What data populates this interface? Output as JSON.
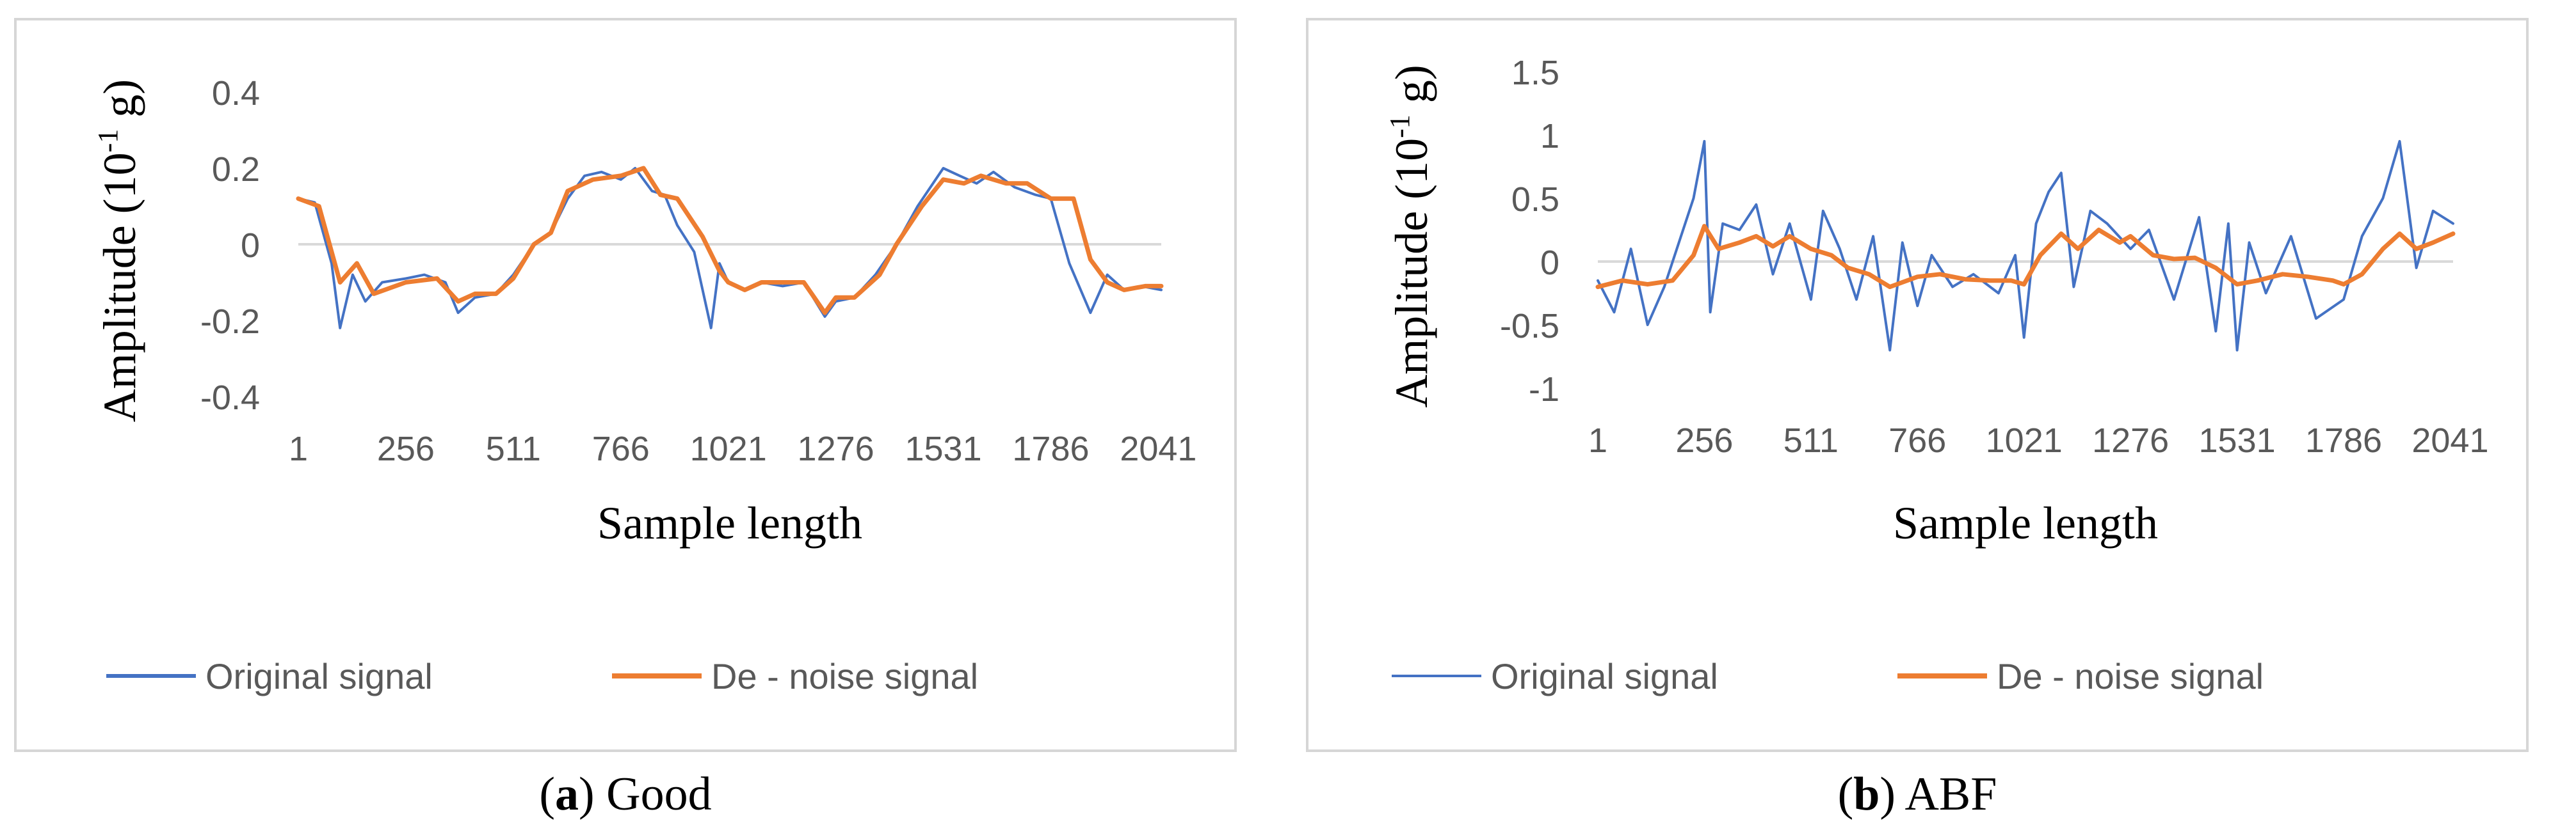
{
  "chart_data": [
    {
      "type": "line",
      "panel": "a",
      "title": "",
      "caption_letter": "a",
      "caption_text": "Good",
      "xlabel": "Sample length",
      "ylabel_main": "Amplitude (10",
      "ylabel_sup": "-1",
      "ylabel_tail": " g)",
      "x_ticks": [
        "1",
        "256",
        "511",
        "766",
        "1021",
        "1276",
        "1531",
        "1786",
        "2041"
      ],
      "x_range": [
        1,
        2048
      ],
      "y_ticks": [
        "0.4",
        "0.2",
        "0",
        "-0.2",
        "-0.4"
      ],
      "ylim": [
        -0.4,
        0.4
      ],
      "grid": "horizontal zero line only",
      "legend_position": "bottom",
      "colors": {
        "original": "#4472c4",
        "denoise": "#ed7d31"
      },
      "series": [
        {
          "name": "Original signal",
          "color": "#4472c4",
          "x": [
            1,
            40,
            80,
            100,
            130,
            160,
            200,
            256,
            300,
            350,
            380,
            420,
            470,
            511,
            560,
            600,
            640,
            680,
            720,
            766,
            800,
            840,
            870,
            900,
            940,
            980,
            1000,
            1021,
            1060,
            1100,
            1150,
            1200,
            1250,
            1276,
            1320,
            1370,
            1420,
            1470,
            1531,
            1570,
            1610,
            1650,
            1700,
            1750,
            1786,
            1830,
            1880,
            1920,
            1960,
            2000,
            2048
          ],
          "y": [
            0.12,
            0.11,
            -0.05,
            -0.22,
            -0.08,
            -0.15,
            -0.1,
            -0.09,
            -0.08,
            -0.1,
            -0.18,
            -0.14,
            -0.13,
            -0.08,
            0.0,
            0.03,
            0.12,
            0.18,
            0.19,
            0.17,
            0.2,
            0.14,
            0.13,
            0.05,
            -0.02,
            -0.22,
            -0.05,
            -0.1,
            -0.12,
            -0.1,
            -0.11,
            -0.1,
            -0.19,
            -0.15,
            -0.14,
            -0.08,
            0.0,
            0.1,
            0.2,
            0.18,
            0.16,
            0.19,
            0.15,
            0.13,
            0.12,
            -0.05,
            -0.18,
            -0.08,
            -0.12,
            -0.11,
            -0.12
          ]
        },
        {
          "name": "De - noise signal",
          "color": "#ed7d31",
          "x": [
            1,
            50,
            100,
            140,
            180,
            256,
            330,
            380,
            420,
            470,
            511,
            560,
            600,
            640,
            700,
            766,
            820,
            860,
            900,
            960,
            1000,
            1021,
            1060,
            1100,
            1150,
            1200,
            1250,
            1276,
            1320,
            1380,
            1420,
            1480,
            1531,
            1580,
            1620,
            1680,
            1730,
            1786,
            1840,
            1880,
            1920,
            1960,
            2010,
            2048
          ],
          "y": [
            0.12,
            0.1,
            -0.1,
            -0.05,
            -0.13,
            -0.1,
            -0.09,
            -0.15,
            -0.13,
            -0.13,
            -0.09,
            0.0,
            0.03,
            0.14,
            0.17,
            0.18,
            0.2,
            0.13,
            0.12,
            0.02,
            -0.07,
            -0.1,
            -0.12,
            -0.1,
            -0.1,
            -0.1,
            -0.18,
            -0.14,
            -0.14,
            -0.08,
            0.0,
            0.1,
            0.17,
            0.16,
            0.18,
            0.16,
            0.16,
            0.12,
            0.12,
            -0.04,
            -0.1,
            -0.12,
            -0.11,
            -0.11
          ]
        }
      ]
    },
    {
      "type": "line",
      "panel": "b",
      "title": "",
      "caption_letter": "b",
      "caption_text": "ABF",
      "xlabel": "Sample length",
      "ylabel_main": "Amplitude (10",
      "ylabel_sup": "-1",
      "ylabel_tail": " g)",
      "x_ticks": [
        "1",
        "256",
        "511",
        "766",
        "1021",
        "1276",
        "1531",
        "1786",
        "2041"
      ],
      "x_range": [
        1,
        2048
      ],
      "y_ticks": [
        "1.5",
        "1",
        "0.5",
        "0",
        "-0.5",
        "-1"
      ],
      "ylim": [
        -1.0,
        1.5
      ],
      "grid": "horizontal zero line only",
      "legend_position": "bottom",
      "colors": {
        "original": "#4472c4",
        "denoise": "#ed7d31"
      },
      "series": [
        {
          "name": "Original signal",
          "color": "#4472c4",
          "x": [
            1,
            40,
            80,
            120,
            160,
            200,
            230,
            256,
            270,
            300,
            340,
            380,
            420,
            460,
            511,
            540,
            580,
            620,
            660,
            700,
            730,
            766,
            800,
            850,
            900,
            960,
            1000,
            1021,
            1050,
            1080,
            1110,
            1140,
            1180,
            1220,
            1276,
            1320,
            1380,
            1440,
            1480,
            1510,
            1531,
            1560,
            1600,
            1660,
            1720,
            1786,
            1830,
            1880,
            1920,
            1960,
            2000,
            2048
          ],
          "y": [
            -0.15,
            -0.4,
            0.1,
            -0.5,
            -0.2,
            0.2,
            0.5,
            0.95,
            -0.4,
            0.3,
            0.25,
            0.45,
            -0.1,
            0.3,
            -0.3,
            0.4,
            0.1,
            -0.3,
            0.2,
            -0.7,
            0.15,
            -0.35,
            0.05,
            -0.2,
            -0.1,
            -0.25,
            0.05,
            -0.6,
            0.3,
            0.55,
            0.7,
            -0.2,
            0.4,
            0.3,
            0.1,
            0.25,
            -0.3,
            0.35,
            -0.55,
            0.3,
            -0.7,
            0.15,
            -0.25,
            0.2,
            -0.45,
            -0.3,
            0.2,
            0.5,
            0.95,
            -0.05,
            0.4,
            0.3
          ]
        },
        {
          "name": "De - noise signal",
          "color": "#ed7d31",
          "x": [
            1,
            60,
            120,
            180,
            230,
            256,
            290,
            340,
            380,
            420,
            460,
            511,
            560,
            600,
            650,
            700,
            766,
            820,
            880,
            940,
            990,
            1021,
            1060,
            1110,
            1150,
            1200,
            1250,
            1276,
            1330,
            1380,
            1430,
            1480,
            1531,
            1580,
            1640,
            1700,
            1760,
            1786,
            1830,
            1880,
            1920,
            1960,
            2000,
            2048
          ],
          "y": [
            -0.2,
            -0.15,
            -0.18,
            -0.15,
            0.05,
            0.28,
            0.1,
            0.15,
            0.2,
            0.12,
            0.2,
            0.1,
            0.05,
            -0.05,
            -0.1,
            -0.2,
            -0.12,
            -0.1,
            -0.14,
            -0.15,
            -0.15,
            -0.18,
            0.05,
            0.22,
            0.1,
            0.25,
            0.15,
            0.2,
            0.05,
            0.02,
            0.03,
            -0.05,
            -0.18,
            -0.15,
            -0.1,
            -0.12,
            -0.15,
            -0.18,
            -0.1,
            0.1,
            0.22,
            0.1,
            0.15,
            0.22
          ]
        }
      ]
    }
  ]
}
